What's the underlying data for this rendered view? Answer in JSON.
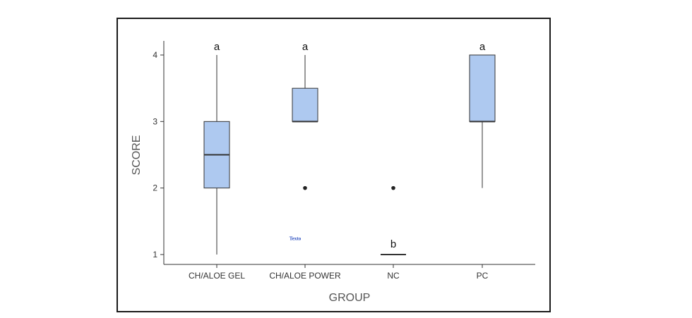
{
  "chart_data": {
    "type": "box",
    "xlabel": "GROUP",
    "ylabel": "SCORE",
    "ylim": [
      0.85,
      4.15
    ],
    "yticks": [
      1,
      2,
      3,
      4
    ],
    "categories": [
      "CH/ALOE GEL",
      "CH/ALOE POWER",
      "NC",
      "PC"
    ],
    "boxes": [
      {
        "category": "CH/ALOE GEL",
        "whisker_low": 1,
        "q1": 2,
        "median": 2.5,
        "q3": 3,
        "whisker_high": 4,
        "outliers": [],
        "letter": "a"
      },
      {
        "category": "CH/ALOE POWER",
        "whisker_low": 3,
        "q1": 3,
        "median": 3,
        "q3": 3.5,
        "whisker_high": 4,
        "outliers": [
          2
        ],
        "letter": "a"
      },
      {
        "category": "NC",
        "whisker_low": 1,
        "q1": 1,
        "median": 1,
        "q3": 1,
        "whisker_high": 1,
        "outliers": [
          2
        ],
        "letter": "b"
      },
      {
        "category": "PC",
        "whisker_low": 2,
        "q1": 3,
        "median": 3,
        "q3": 4,
        "whisker_high": 4,
        "outliers": [],
        "letter": "a"
      }
    ],
    "annotation": {
      "text": "Texto",
      "x_category": "CH/ALOE POWER",
      "y": 1.28
    },
    "colors": {
      "box_fill": "#aec9f0",
      "box_stroke": "#333333",
      "outlier": "#222222"
    },
    "grid": false,
    "legend": "none"
  }
}
